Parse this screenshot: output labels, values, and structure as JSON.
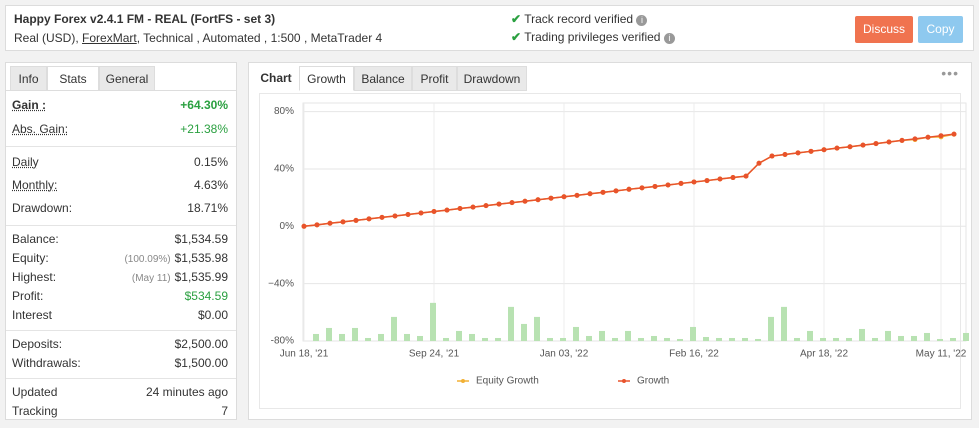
{
  "header": {
    "title": "Happy Forex v2.4.1 FM - REAL (FortFS - set 3)",
    "subtitle_start": "Real (USD),",
    "broker": "ForexMart",
    "subtitle_end": ", Technical , Automated , 1:500 , MetaTrader 4",
    "verified": [
      "Track record verified",
      "Trading privileges verified"
    ],
    "buttons": [
      "Discuss",
      "Copy"
    ]
  },
  "stats": {
    "tabs": [
      "Info",
      "Stats",
      "General"
    ],
    "active_tab": 1,
    "groups": [
      [
        {
          "label": "Gain :",
          "value": "+64.30%",
          "underline": true,
          "bold": true,
          "color": "#2aa040"
        },
        {
          "label": "Abs. Gain:",
          "value": "+21.38%",
          "underline": true,
          "color": "#2aa040"
        }
      ],
      [
        {
          "label": "Daily",
          "value": "0.15%",
          "underline": true
        },
        {
          "label": "Monthly:",
          "value": "4.63%",
          "underline": true
        },
        {
          "label": "Drawdown:",
          "value": "18.71%"
        }
      ],
      [
        {
          "label": "Balance:",
          "value": "$1,534.59"
        },
        {
          "label": "Equity:",
          "note": "(100.09%)",
          "value": "$1,535.98"
        },
        {
          "label": "Highest:",
          "note": "(May 11)",
          "value": "$1,535.99"
        },
        {
          "label": "Profit:",
          "value": "$534.59",
          "color": "#2aa040"
        },
        {
          "label": "Interest",
          "value": "$0.00"
        }
      ],
      [
        {
          "label": "Deposits:",
          "value": "$2,500.00"
        },
        {
          "label": "Withdrawals:",
          "value": "$1,500.00"
        }
      ],
      [
        {
          "label": "Updated",
          "value": "24 minutes ago"
        },
        {
          "label": "Tracking",
          "value": "7"
        }
      ]
    ]
  },
  "chart_tabs": [
    "Chart",
    "Growth",
    "Balance",
    "Profit",
    "Drawdown"
  ],
  "active_chart_tab": 1,
  "chart_data": {
    "type": "line",
    "categories": [
      "Jun 18, '21",
      null,
      null,
      null,
      null,
      null,
      null,
      null,
      null,
      null,
      "Sep 24, '21",
      null,
      null,
      null,
      null,
      null,
      null,
      null,
      null,
      null,
      "Jan 03, '22",
      null,
      null,
      null,
      null,
      null,
      null,
      null,
      null,
      null,
      "Feb 16, '22",
      null,
      null,
      null,
      null,
      null,
      null,
      null,
      null,
      null,
      "Apr 18, '22",
      null,
      null,
      null,
      null,
      null,
      null,
      null,
      null,
      "May 11, '22",
      null
    ],
    "ylim": [
      -80,
      86
    ],
    "yticks": [
      {
        "value": -80,
        "label": "-80%"
      },
      {
        "value": -40,
        "label": "−40%"
      },
      {
        "value": 0,
        "label": "0%"
      },
      {
        "value": 40,
        "label": "40%"
      },
      {
        "value": 80,
        "label": "80%"
      }
    ],
    "grid": true,
    "bars": {
      "color": "#b8e2b2",
      "values": [
        -75.1,
        -70.9,
        -75.1,
        -70.9,
        -77.9,
        -75.1,
        -63.2,
        -75.1,
        -76.5,
        -53.4,
        -77.9,
        -73,
        -75.1,
        -77.9,
        -77.9,
        -56.2,
        -68.1,
        -63.2,
        -77.9,
        -77.9,
        -70.2,
        -76.5,
        -73,
        -77.9,
        -73,
        -77.9,
        -76.5,
        -77.9,
        -78.6,
        -70.2,
        -77.2,
        -77.9,
        -77.9,
        -77.9,
        -78.6,
        -63.2,
        -56.2,
        -77.9,
        -73,
        -77.9,
        -77.9,
        -77.9,
        -71.6,
        -77.9,
        -73,
        -76.5,
        -76.5,
        -74.4,
        -78.6,
        -77.9,
        -74.4
      ]
    },
    "series": [
      {
        "name": "Equity Growth",
        "color": "#f2b134",
        "values": [
          0,
          1,
          2.1,
          3.1,
          4.1,
          5.2,
          6.2,
          7.2,
          8.2,
          9.3,
          10.3,
          11.3,
          12.4,
          13.4,
          14.4,
          15.5,
          16.5,
          17.5,
          18.5,
          19.6,
          20.6,
          21.6,
          22.7,
          23.7,
          24.7,
          25.8,
          26.8,
          27.8,
          28.8,
          29.9,
          30.9,
          31.9,
          33,
          34,
          35,
          44,
          49,
          50.1,
          51.2,
          52.3,
          53.4,
          54.5,
          55.5,
          56.6,
          57.7,
          58.8,
          59.9,
          60.5,
          62.1,
          62.4,
          64.2
        ]
      },
      {
        "name": "Growth",
        "color": "#e8532c",
        "values": [
          0,
          1,
          2.1,
          3.1,
          4.1,
          5.2,
          6.2,
          7.2,
          8.2,
          9.3,
          10.3,
          11.3,
          12.4,
          13.4,
          14.4,
          15.5,
          16.5,
          17.5,
          18.5,
          19.6,
          20.6,
          21.6,
          22.7,
          23.7,
          24.7,
          25.8,
          26.8,
          27.8,
          28.8,
          29.9,
          30.9,
          31.9,
          33,
          34,
          35,
          44,
          49,
          50.1,
          51.2,
          52.3,
          53.4,
          54.5,
          55.5,
          56.6,
          57.7,
          58.8,
          59.9,
          61,
          62.1,
          63.2,
          64.3
        ]
      }
    ]
  }
}
